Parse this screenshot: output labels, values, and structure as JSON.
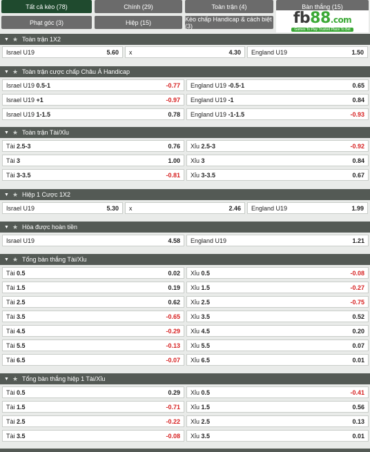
{
  "tabs": [
    {
      "label": "Tất cả kèo (78)",
      "active": true
    },
    {
      "label": "Chính (29)"
    },
    {
      "label": "Toàn trận (4)"
    },
    {
      "label": "Bàn thắng (15)"
    },
    {
      "label": "Phạt góc (3)"
    },
    {
      "label": "Hiệp (15)"
    },
    {
      "label": "Kèo chấp Handicap & cách biệt (3)"
    }
  ],
  "logo": {
    "fb": "fb",
    "num": "88",
    "com": ".com",
    "tagline": "Games To Play   Trusted Place To Bet"
  },
  "sections": [
    {
      "title": "Toàn trận 1X2",
      "rows": [
        [
          {
            "team": "Israel U19",
            "odd": "5.60"
          },
          {
            "team": "x",
            "odd": "4.30"
          },
          {
            "team": "England U19",
            "odd": "1.50"
          }
        ]
      ]
    },
    {
      "title": "Toàn trận cược chấp Châu Á Handicap",
      "rows": [
        [
          {
            "team": "Israel U19",
            "line": "0.5-1",
            "odd": "-0.77"
          },
          {
            "team": "England U19",
            "line": "-0.5-1",
            "odd": "0.65"
          }
        ],
        [
          {
            "team": "Israel U19",
            "line": "+1",
            "odd": "-0.97"
          },
          {
            "team": "England U19",
            "line": "-1",
            "odd": "0.84"
          }
        ],
        [
          {
            "team": "Israel U19",
            "line": "1-1.5",
            "odd": "0.78"
          },
          {
            "team": "England U19",
            "line": "-1-1.5",
            "odd": "-0.93"
          }
        ]
      ]
    },
    {
      "title": "Toàn trận Tài/Xỉu",
      "rows": [
        [
          {
            "team": "Tài",
            "line": "2.5-3",
            "odd": "0.76"
          },
          {
            "team": "Xỉu",
            "line": "2.5-3",
            "odd": "-0.92"
          }
        ],
        [
          {
            "team": "Tài",
            "line": "3",
            "odd": "1.00"
          },
          {
            "team": "Xỉu",
            "line": "3",
            "odd": "0.84"
          }
        ],
        [
          {
            "team": "Tài",
            "line": "3-3.5",
            "odd": "-0.81"
          },
          {
            "team": "Xỉu",
            "line": "3-3.5",
            "odd": "0.67"
          }
        ]
      ]
    },
    {
      "title": "Hiệp 1 Cược 1X2",
      "rows": [
        [
          {
            "team": "Israel U19",
            "odd": "5.30"
          },
          {
            "team": "x",
            "odd": "2.46"
          },
          {
            "team": "England U19",
            "odd": "1.99"
          }
        ]
      ]
    },
    {
      "title": "Hòa được hoàn tiền",
      "rows": [
        [
          {
            "team": "Israel U19",
            "odd": "4.58"
          },
          {
            "team": "England U19",
            "odd": "1.21"
          }
        ]
      ]
    },
    {
      "title": "Tổng bàn thắng Tài/Xỉu",
      "rows": [
        [
          {
            "team": "Tài",
            "line": "0.5",
            "odd": "0.02"
          },
          {
            "team": "Xỉu",
            "line": "0.5",
            "odd": "-0.08"
          }
        ],
        [
          {
            "team": "Tài",
            "line": "1.5",
            "odd": "0.19"
          },
          {
            "team": "Xỉu",
            "line": "1.5",
            "odd": "-0.27"
          }
        ],
        [
          {
            "team": "Tài",
            "line": "2.5",
            "odd": "0.62"
          },
          {
            "team": "Xỉu",
            "line": "2.5",
            "odd": "-0.75"
          }
        ],
        [
          {
            "team": "Tài",
            "line": "3.5",
            "odd": "-0.65"
          },
          {
            "team": "Xỉu",
            "line": "3.5",
            "odd": "0.52"
          }
        ],
        [
          {
            "team": "Tài",
            "line": "4.5",
            "odd": "-0.29"
          },
          {
            "team": "Xỉu",
            "line": "4.5",
            "odd": "0.20"
          }
        ],
        [
          {
            "team": "Tài",
            "line": "5.5",
            "odd": "-0.13"
          },
          {
            "team": "Xỉu",
            "line": "5.5",
            "odd": "0.07"
          }
        ],
        [
          {
            "team": "Tài",
            "line": "6.5",
            "odd": "-0.07"
          },
          {
            "team": "Xỉu",
            "line": "6.5",
            "odd": "0.01"
          }
        ]
      ]
    },
    {
      "title": "Tổng bàn thắng hiệp 1 Tài/Xỉu",
      "rows": [
        [
          {
            "team": "Tài",
            "line": "0.5",
            "odd": "0.29"
          },
          {
            "team": "Xỉu",
            "line": "0.5",
            "odd": "-0.41"
          }
        ],
        [
          {
            "team": "Tài",
            "line": "1.5",
            "odd": "-0.71"
          },
          {
            "team": "Xỉu",
            "line": "1.5",
            "odd": "0.56"
          }
        ],
        [
          {
            "team": "Tài",
            "line": "2.5",
            "odd": "-0.22"
          },
          {
            "team": "Xỉu",
            "line": "2.5",
            "odd": "0.13"
          }
        ],
        [
          {
            "team": "Tài",
            "line": "3.5",
            "odd": "-0.08"
          },
          {
            "team": "Xỉu",
            "line": "3.5",
            "odd": "0.01"
          }
        ]
      ]
    }
  ],
  "colors": {
    "negative": "#d61f1f",
    "header": "#545a55",
    "active_tab": "#1f4a2e",
    "tab": "#6b6b6b"
  }
}
